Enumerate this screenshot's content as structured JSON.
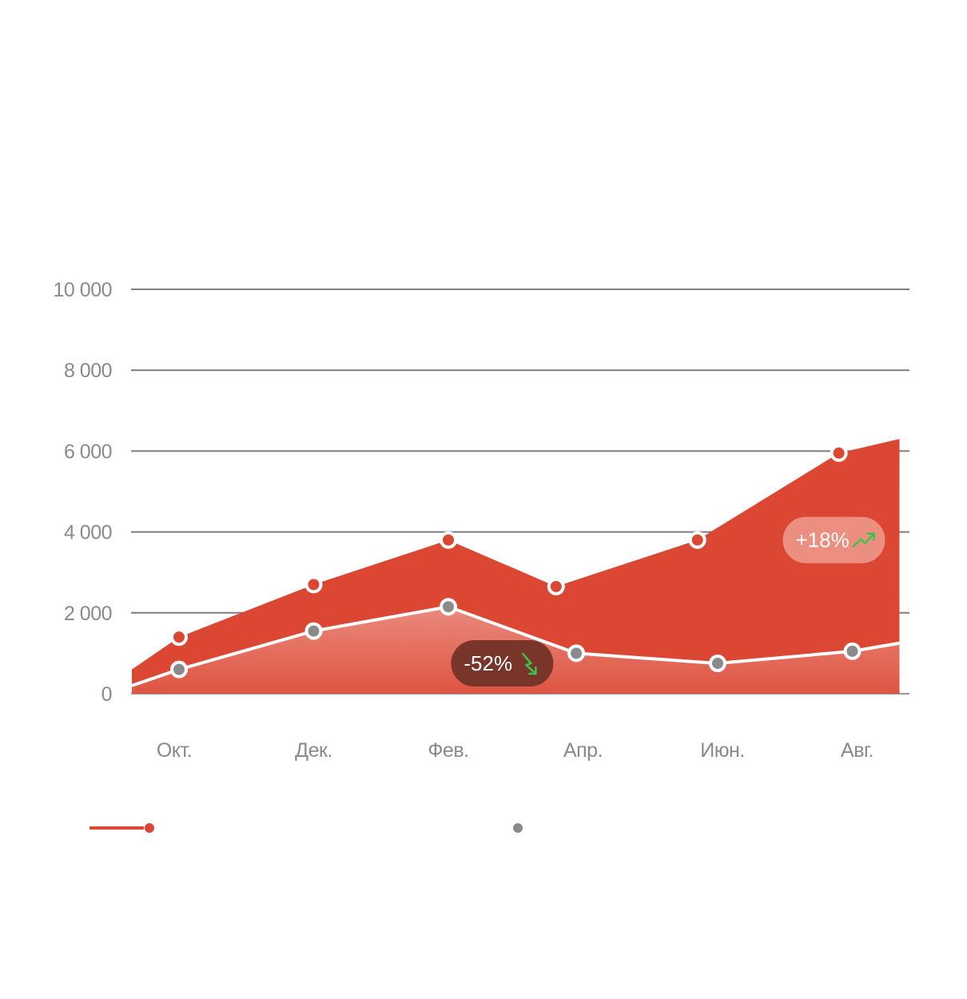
{
  "chart_data": {
    "type": "area",
    "categories": [
      "Окт.",
      "Дек.",
      "Фев.",
      "Апр.",
      "Июн.",
      "Авг."
    ],
    "ylim": [
      0,
      10000
    ],
    "y_ticks": [
      0,
      2000,
      4000,
      6000,
      8000,
      10000
    ],
    "y_tick_labels": [
      "0",
      "2 000",
      "4 000",
      "6 000",
      "8 000",
      "10 000"
    ],
    "grid": true,
    "series": [
      {
        "color": "#db4733",
        "x": [
          -0.35,
          0,
          1,
          2,
          2.8,
          3.85,
          4.9,
          5.35
        ],
        "values": [
          600,
          1400,
          2700,
          3800,
          2650,
          3800,
          5950,
          6300
        ],
        "markers": [
          1,
          2,
          3,
          4,
          5,
          6
        ]
      },
      {
        "color": "#e56d5b",
        "x": [
          -0.35,
          0,
          1,
          2,
          2.95,
          4.0,
          5.0,
          5.35
        ],
        "values": [
          200,
          600,
          1550,
          2150,
          1000,
          750,
          1050,
          1250
        ],
        "markers": [
          1,
          2,
          3,
          4,
          5,
          6
        ]
      }
    ],
    "annotations": [
      {
        "text": "+18%",
        "trend": "up",
        "x": 5.35,
        "y": 3800,
        "bg": "#ec8e80"
      },
      {
        "text": "-52%",
        "trend": "down",
        "x": 2.4,
        "y": 750,
        "bg": "#7a352b"
      }
    ],
    "trend_arrow_color": "#3cc34a",
    "legend": {
      "placement": "bottom",
      "items": [
        {
          "color": "#db4733",
          "style": "line-dot"
        },
        {
          "color": "#8a8a8a",
          "style": "dot"
        }
      ]
    }
  }
}
